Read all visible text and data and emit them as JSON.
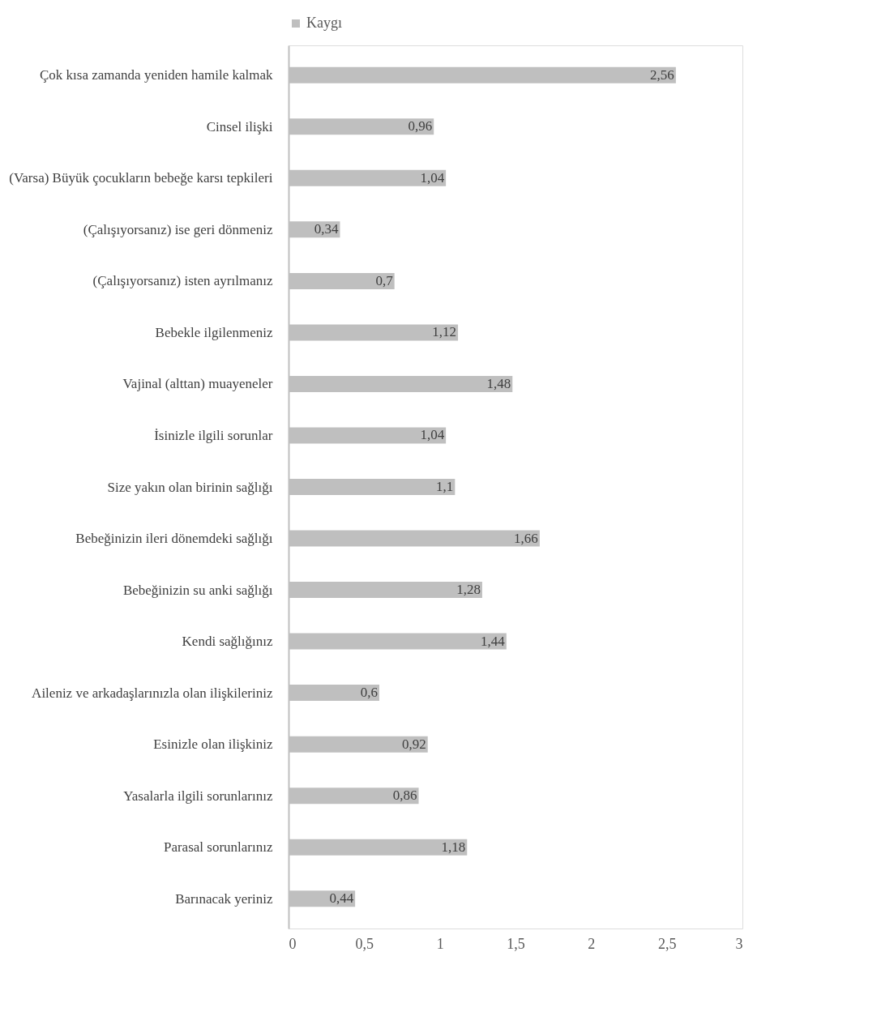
{
  "chart_data": {
    "type": "bar",
    "orientation": "horizontal",
    "categories": [
      "Çok kısa zamanda yeniden hamile kalmak",
      "Cinsel ilişki",
      "(Varsa) Büyük çocukların bebeğe karsı tepkileri",
      "(Çalışıyorsanız) ise geri dönmeniz",
      "(Çalışıyorsanız) isten ayrılmanız",
      "Bebekle ilgilenmeniz",
      "Vajinal (alttan) muayeneler",
      "İsinizle ilgili sorunlar",
      "Size yakın olan birinin sağlığı",
      "Bebeğinizin ileri dönemdeki sağlığı",
      "Bebeğinizin su anki sağlığı",
      "Kendi sağlığınız",
      "Aileniz ve arkadaşlarınızla olan ilişkileriniz",
      "Esinizle olan ilişkiniz",
      "Yasalarla ilgili sorunlarınız",
      "Parasal sorunlarınız",
      "Barınacak yeriniz"
    ],
    "series": [
      {
        "name": "Kaygı",
        "color": "#bfbfbf",
        "values": [
          2.56,
          0.96,
          1.04,
          0.34,
          0.7,
          1.12,
          1.48,
          1.04,
          1.1,
          1.66,
          1.28,
          1.44,
          0.6,
          0.92,
          0.86,
          1.18,
          0.44
        ],
        "value_labels": [
          "2,56",
          "0,96",
          "1,04",
          "0,34",
          "0,7",
          "1,12",
          "1,48",
          "1,04",
          "1,1",
          "1,66",
          "1,28",
          "1,44",
          "0,6",
          "0,92",
          "0,86",
          "1,18",
          "0,44"
        ]
      }
    ],
    "xlim": [
      0,
      3
    ],
    "xticks": [
      0,
      {
        "value": 0.5,
        "label": "0,5"
      },
      1,
      {
        "value": 1.5,
        "label": "1,5"
      },
      2,
      {
        "value": 2.5,
        "label": "2,5"
      },
      3
    ],
    "grid": false,
    "legend": "top"
  }
}
